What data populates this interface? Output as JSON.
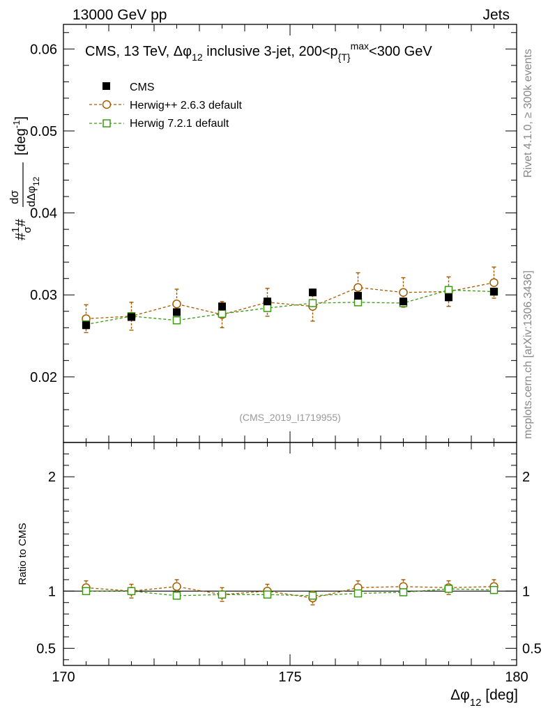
{
  "header": {
    "energy_label": "13000 GeV pp",
    "category_label": "Jets"
  },
  "side_labels": {
    "rivet": "Rivet 4.1.0, ≥ 300k events",
    "mcplots": "mcplots.cern.ch [arXiv:1306.3436]"
  },
  "analysis_id": "(CMS_2019_I1719955)",
  "colors": {
    "cms": "#000000",
    "herwigpp": "#a65a00",
    "herwig7": "#3a9a10",
    "side_text": "#888888"
  },
  "chart_data": [
    {
      "type": "scatter",
      "panel": "main",
      "title": {
        "prefix": "CMS, 13 TeV, ",
        "phi_sub": "12",
        "mid": " inclusive 3-jet, 200<p",
        "pt_sub": "{T}",
        "pt_sup": "max",
        "suffix": "<300 GeV"
      },
      "ylabel": {
        "lead": "#",
        "frac_one": "1",
        "sigma": "σ",
        "hash2": "#",
        "num": "dσ",
        "den": "dΔφ",
        "den_sub": "12",
        "unit": "[deg",
        "unit_sup": "-1",
        "unit_close": "]"
      },
      "xlim": [
        170,
        180
      ],
      "ylim": [
        0.012,
        0.063
      ],
      "yticks": [
        0.02,
        0.03,
        0.04,
        0.05,
        0.06
      ],
      "ytick_labels": [
        "0.02",
        "0.03",
        "0.04",
        "0.05",
        "0.06"
      ],
      "x": [
        170.5,
        171.5,
        172.5,
        173.5,
        174.5,
        175.5,
        176.5,
        177.5,
        178.5,
        179.5
      ],
      "series": [
        {
          "name": "CMS",
          "marker": "filled-square",
          "values": [
            0.0263,
            0.0273,
            0.0279,
            0.0286,
            0.0292,
            0.0303,
            0.0299,
            0.0292,
            0.0297,
            0.0304
          ],
          "errors": [
            0.0004,
            0.0004,
            0.0004,
            0.0004,
            0.0004,
            0.0004,
            0.0004,
            0.0004,
            0.0004,
            0.0004
          ]
        },
        {
          "name": "Herwig++ 2.6.3 default",
          "marker": "open-circle",
          "values": [
            0.0271,
            0.0274,
            0.0289,
            0.0276,
            0.0291,
            0.0286,
            0.0309,
            0.0303,
            0.0304,
            0.0315
          ],
          "errors": [
            0.0017,
            0.0017,
            0.0018,
            0.0016,
            0.0017,
            0.0018,
            0.0018,
            0.0018,
            0.0018,
            0.0019
          ]
        },
        {
          "name": "Herwig 7.2.1 default",
          "marker": "open-square",
          "values": [
            0.0264,
            0.0274,
            0.0269,
            0.0277,
            0.0284,
            0.029,
            0.0291,
            0.029,
            0.0306,
            0.0304
          ],
          "errors": [
            0.0004,
            0.0004,
            0.0004,
            0.0004,
            0.0004,
            0.0004,
            0.0004,
            0.0004,
            0.0004,
            0.0004
          ]
        }
      ]
    },
    {
      "type": "scatter",
      "panel": "ratio",
      "ylabel": "Ratio to CMS",
      "xlabel": {
        "prefix": "Δφ",
        "sub": "12",
        "suffix": " [deg]"
      },
      "xlim": [
        170,
        180
      ],
      "ylim": [
        0.35,
        2.3
      ],
      "xticks": [
        170,
        175,
        180
      ],
      "xtick_labels": [
        "170",
        "175",
        "180"
      ],
      "yticks": [
        0.5,
        1,
        2
      ],
      "ytick_labels": [
        "0.5",
        "1",
        "2"
      ],
      "right_ytick_labels": [
        "0.5",
        "1",
        "2"
      ],
      "x": [
        170.5,
        171.5,
        172.5,
        173.5,
        174.5,
        175.5,
        176.5,
        177.5,
        178.5,
        179.5
      ],
      "series": [
        {
          "name": "Herwig++ 2.6.3 default",
          "marker": "open-circle",
          "values": [
            1.03,
            1.0,
            1.04,
            0.97,
            1.0,
            0.94,
            1.03,
            1.04,
            1.03,
            1.04
          ],
          "errors": [
            0.06,
            0.06,
            0.06,
            0.06,
            0.06,
            0.06,
            0.06,
            0.06,
            0.06,
            0.06
          ]
        },
        {
          "name": "Herwig 7.2.1 default",
          "marker": "open-square",
          "values": [
            1.0,
            1.0,
            0.96,
            0.97,
            0.97,
            0.96,
            0.98,
            0.99,
            1.02,
            1.01
          ],
          "errors": [
            0.02,
            0.02,
            0.02,
            0.02,
            0.02,
            0.02,
            0.02,
            0.02,
            0.02,
            0.02
          ]
        }
      ]
    }
  ]
}
